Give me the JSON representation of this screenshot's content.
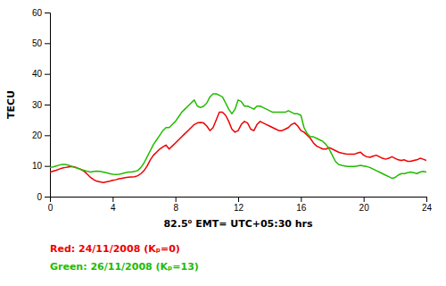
{
  "chart_data": {
    "type": "line",
    "xlabel": "82.5⁰ EMT= UTC+05:30 hrs",
    "ylabel": "TECU",
    "xlim": [
      0,
      24
    ],
    "ylim": [
      0,
      60
    ],
    "xticks": [
      0,
      4,
      8,
      12,
      16,
      20,
      24
    ],
    "yticks": [
      0,
      10,
      20,
      30,
      40,
      50,
      60
    ],
    "legend": "bottom",
    "x": [
      0,
      0.2,
      0.4,
      0.6,
      0.8,
      1.0,
      1.2,
      1.4,
      1.6,
      1.8,
      2.0,
      2.2,
      2.4,
      2.6,
      2.8,
      3.0,
      3.2,
      3.4,
      3.6,
      3.8,
      4.0,
      4.2,
      4.4,
      4.6,
      4.8,
      5.0,
      5.2,
      5.4,
      5.6,
      5.8,
      6.0,
      6.2,
      6.4,
      6.6,
      6.8,
      7.0,
      7.2,
      7.4,
      7.6,
      7.8,
      8.0,
      8.2,
      8.4,
      8.6,
      8.8,
      9.0,
      9.2,
      9.4,
      9.6,
      9.8,
      10.0,
      10.2,
      10.4,
      10.6,
      10.8,
      11.0,
      11.2,
      11.4,
      11.6,
      11.8,
      12.0,
      12.2,
      12.4,
      12.6,
      12.8,
      13.0,
      13.2,
      13.4,
      13.6,
      13.8,
      14.0,
      14.2,
      14.4,
      14.6,
      14.8,
      15.0,
      15.2,
      15.4,
      15.6,
      15.8,
      16.0,
      16.2,
      16.4,
      16.6,
      16.8,
      17.0,
      17.2,
      17.4,
      17.6,
      17.8,
      18.0,
      18.2,
      18.4,
      18.6,
      18.8,
      19.0,
      19.2,
      19.4,
      19.6,
      19.8,
      20.0,
      20.2,
      20.4,
      20.6,
      20.8,
      21.0,
      21.2,
      21.4,
      21.6,
      21.8,
      22.0,
      22.2,
      22.4,
      22.6,
      22.8,
      23.0,
      23.2,
      23.4,
      23.6,
      23.8,
      24.0
    ],
    "series": [
      {
        "name": "Red: 24/11/2008 (Kₚ=0)",
        "color": "#ee0000",
        "values": [
          8.0,
          8.3,
          8.6,
          9.0,
          9.3,
          9.5,
          9.7,
          9.8,
          9.6,
          9.2,
          8.8,
          8.2,
          7.2,
          6.2,
          5.5,
          5.0,
          4.8,
          4.6,
          4.8,
          5.0,
          5.3,
          5.5,
          5.8,
          6.0,
          6.2,
          6.3,
          6.4,
          6.5,
          6.8,
          7.5,
          8.5,
          10.0,
          12.0,
          13.5,
          14.5,
          15.5,
          16.2,
          16.8,
          15.5,
          16.5,
          17.5,
          18.5,
          19.5,
          20.5,
          21.5,
          22.5,
          23.5,
          24.0,
          24.2,
          24.0,
          23.0,
          21.5,
          22.5,
          25.0,
          27.5,
          27.5,
          26.5,
          24.5,
          22.0,
          21.0,
          21.5,
          23.5,
          24.5,
          24.0,
          22.0,
          21.5,
          23.5,
          24.5,
          24.0,
          23.5,
          23.0,
          22.5,
          22.0,
          21.5,
          21.5,
          22.0,
          22.5,
          23.5,
          24.0,
          23.0,
          21.5,
          21.0,
          20.0,
          19.0,
          17.5,
          16.5,
          16.0,
          15.5,
          15.5,
          16.0,
          15.5,
          15.0,
          14.5,
          14.2,
          14.0,
          13.8,
          13.8,
          13.8,
          14.2,
          14.5,
          13.5,
          13.0,
          12.8,
          13.2,
          13.5,
          13.0,
          12.5,
          12.2,
          12.5,
          13.0,
          12.5,
          12.0,
          11.8,
          12.0,
          11.5,
          11.5,
          11.8,
          12.0,
          12.5,
          12.2,
          11.8
        ]
      },
      {
        "name": "Green: 26/11/2008 (Kₚ=13)",
        "color": "#22bb00",
        "values": [
          9.5,
          9.7,
          10.0,
          10.3,
          10.5,
          10.5,
          10.2,
          9.8,
          9.5,
          9.2,
          8.8,
          8.5,
          8.2,
          8.0,
          8.2,
          8.3,
          8.2,
          8.0,
          7.8,
          7.5,
          7.3,
          7.2,
          7.3,
          7.5,
          7.8,
          8.0,
          8.0,
          8.2,
          8.5,
          9.5,
          11.0,
          13.0,
          15.0,
          17.0,
          18.5,
          20.0,
          21.5,
          22.5,
          22.5,
          23.5,
          24.5,
          26.0,
          27.5,
          28.5,
          29.5,
          30.5,
          31.5,
          29.5,
          29.0,
          29.5,
          30.5,
          32.5,
          33.5,
          33.5,
          33.0,
          32.5,
          30.5,
          28.5,
          27.0,
          28.5,
          31.5,
          31.0,
          29.5,
          29.5,
          29.0,
          28.5,
          29.5,
          29.5,
          29.0,
          28.5,
          28.0,
          27.5,
          27.5,
          27.5,
          27.5,
          27.5,
          28.0,
          27.5,
          27.0,
          27.0,
          26.5,
          22.5,
          20.5,
          19.5,
          19.5,
          19.0,
          18.5,
          18.0,
          17.0,
          15.5,
          13.5,
          11.5,
          10.5,
          10.2,
          10.0,
          9.8,
          9.8,
          9.8,
          10.0,
          10.2,
          10.0,
          9.8,
          9.5,
          9.0,
          8.5,
          8.0,
          7.5,
          7.0,
          6.5,
          6.0,
          6.2,
          7.0,
          7.5,
          7.5,
          7.8,
          8.0,
          7.8,
          7.5,
          8.0,
          8.2,
          8.0
        ]
      }
    ]
  }
}
